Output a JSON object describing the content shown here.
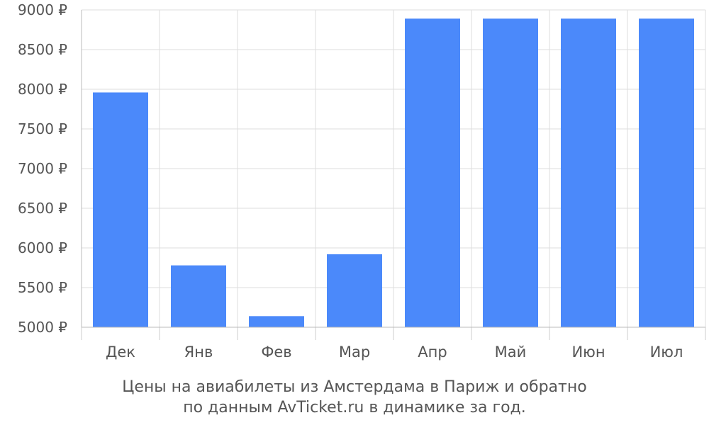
{
  "chart_data": {
    "type": "bar",
    "categories": [
      "Дек",
      "Янв",
      "Фев",
      "Мар",
      "Апр",
      "Май",
      "Июн",
      "Июл"
    ],
    "values": [
      7960,
      5780,
      5140,
      5920,
      8890,
      8890,
      8890,
      8890
    ],
    "ylim": [
      5000,
      9000
    ],
    "yticks": [
      5000,
      5500,
      6000,
      6500,
      7000,
      7500,
      8000,
      8500,
      9000
    ],
    "ytick_labels": [
      "5000 ₽",
      "5500 ₽",
      "6000 ₽",
      "6500 ₽",
      "7000 ₽",
      "7500 ₽",
      "8000 ₽",
      "8500 ₽",
      "9000 ₽"
    ],
    "grid": true,
    "bar_color": "#4b89fa",
    "grid_color": "#dddddd",
    "caption_line1": "Цены на авиабилеты из Амстердама в Париж и обратно",
    "caption_line2": "по данным AvTicket.ru в динамике за год."
  }
}
